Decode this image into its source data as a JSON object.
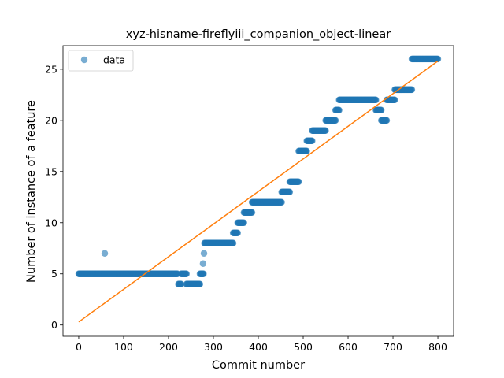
{
  "chart_data": {
    "type": "scatter",
    "title": "xyz-hisname-fireflyiii_companion_object-linear",
    "xlabel": "Commit number",
    "ylabel": "Number of instance of a feature",
    "xlim": [
      -35,
      835
    ],
    "ylim": [
      -1.1,
      27.3
    ],
    "xticks": [
      0,
      100,
      200,
      300,
      400,
      500,
      600,
      700,
      800
    ],
    "yticks": [
      0,
      5,
      10,
      15,
      20,
      25
    ],
    "grid": false,
    "legend": {
      "position": "top-left",
      "entries": [
        "data"
      ]
    },
    "colors": {
      "data": "#1f77b4",
      "fit": "#ff7f0e"
    },
    "series": [
      {
        "name": "data",
        "style": "points",
        "segments": [
          {
            "x_start": 0,
            "x_end": 220,
            "y": 5
          },
          {
            "x_start": 222,
            "x_end": 228,
            "y": 4
          },
          {
            "x_start": 228,
            "x_end": 240,
            "y": 5
          },
          {
            "x_start": 240,
            "x_end": 270,
            "y": 4
          },
          {
            "x_start": 270,
            "x_end": 278,
            "y": 5
          },
          {
            "x_start": 280,
            "x_end": 344,
            "y": 8
          },
          {
            "x_start": 344,
            "x_end": 354,
            "y": 9
          },
          {
            "x_start": 354,
            "x_end": 368,
            "y": 10
          },
          {
            "x_start": 368,
            "x_end": 386,
            "y": 11
          },
          {
            "x_start": 386,
            "x_end": 452,
            "y": 12
          },
          {
            "x_start": 452,
            "x_end": 470,
            "y": 13
          },
          {
            "x_start": 470,
            "x_end": 490,
            "y": 14
          },
          {
            "x_start": 490,
            "x_end": 508,
            "y": 17
          },
          {
            "x_start": 508,
            "x_end": 520,
            "y": 18
          },
          {
            "x_start": 520,
            "x_end": 550,
            "y": 19
          },
          {
            "x_start": 550,
            "x_end": 572,
            "y": 20
          },
          {
            "x_start": 572,
            "x_end": 580,
            "y": 21
          },
          {
            "x_start": 580,
            "x_end": 662,
            "y": 22
          },
          {
            "x_start": 662,
            "x_end": 674,
            "y": 21
          },
          {
            "x_start": 674,
            "x_end": 686,
            "y": 20
          },
          {
            "x_start": 686,
            "x_end": 704,
            "y": 22
          },
          {
            "x_start": 704,
            "x_end": 742,
            "y": 23
          },
          {
            "x_start": 742,
            "x_end": 800,
            "y": 26
          }
        ],
        "points": [
          {
            "x": 58,
            "y": 7
          },
          {
            "x": 275,
            "y": 5
          },
          {
            "x": 277,
            "y": 6
          },
          {
            "x": 279,
            "y": 7
          }
        ]
      },
      {
        "name": "",
        "style": "line",
        "x": [
          0,
          800
        ],
        "values": [
          0.3,
          25.8
        ]
      }
    ]
  }
}
